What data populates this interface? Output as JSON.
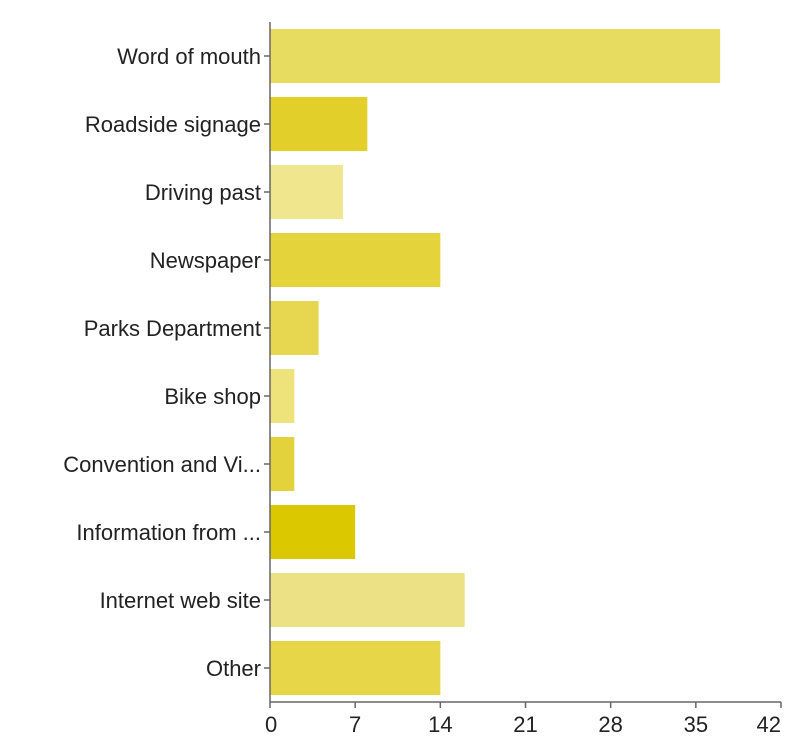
{
  "chart_data": {
    "type": "bar",
    "orientation": "horizontal",
    "categories": [
      "Word of mouth",
      "Roadside signage",
      "Driving past",
      "Newspaper",
      "Parks Department",
      "Bike shop",
      "Convention and Vi...",
      "Information from ...",
      "Internet web site",
      "Other"
    ],
    "values": [
      37,
      8,
      6,
      14,
      4,
      2,
      2,
      7,
      16,
      14
    ],
    "bar_colors": [
      "#e8dc60",
      "#e2cf2a",
      "#f0e68e",
      "#e4d33a",
      "#e6d650",
      "#eee27a",
      "#e4d23c",
      "#dcc800",
      "#ece184",
      "#e6d648"
    ],
    "x_ticks": [
      "0",
      "7",
      "14",
      "21",
      "28",
      "35",
      "42"
    ],
    "xlim": [
      0,
      42
    ],
    "grid": false,
    "legend": "none"
  }
}
